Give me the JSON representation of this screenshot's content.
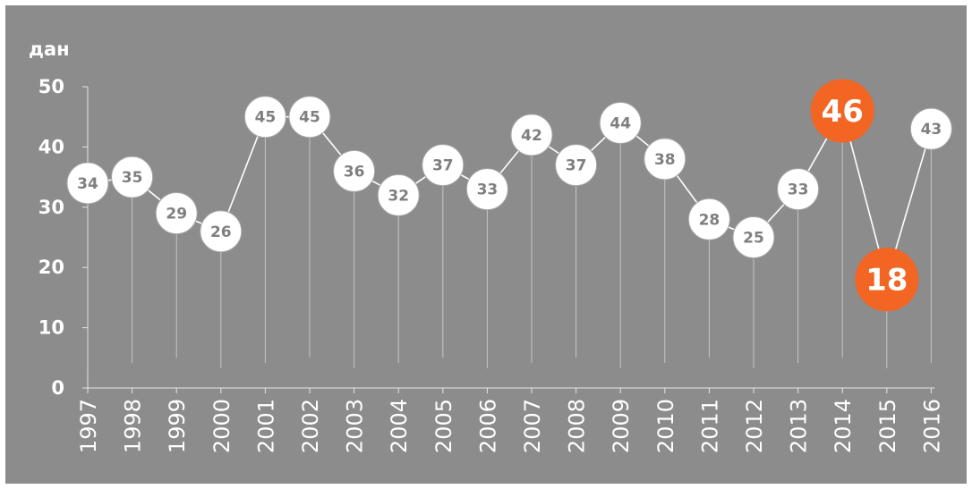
{
  "chart_data": {
    "type": "line",
    "ylabel": "дан",
    "ylim": [
      0,
      50
    ],
    "yticks": [
      0,
      10,
      20,
      30,
      40,
      50
    ],
    "grid": false,
    "x": [
      "1997",
      "1998",
      "1999",
      "2000",
      "2001",
      "2002",
      "2003",
      "2004",
      "2005",
      "2006",
      "2007",
      "2008",
      "2009",
      "2010",
      "2011",
      "2012",
      "2013",
      "2014",
      "2015",
      "2016"
    ],
    "series": [
      {
        "values": [
          34,
          35,
          29,
          26,
          45,
          45,
          36,
          32,
          37,
          33,
          42,
          37,
          44,
          38,
          28,
          25,
          33,
          46,
          18,
          43
        ]
      }
    ],
    "highlighted_years": [
      "2014",
      "2015"
    ],
    "colors": {
      "background": "#8c8c8c",
      "line": "#ffffff",
      "marker": "#ffffff",
      "marker_text": "#7f7f7f",
      "highlight": "#f26522",
      "highlight_text": "#ffffff"
    }
  }
}
